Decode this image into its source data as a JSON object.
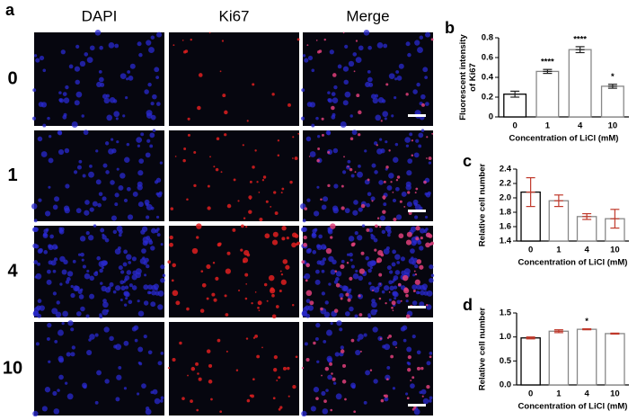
{
  "figure": {
    "panel_a": {
      "label": "a",
      "columns": [
        "DAPI",
        "Ki67",
        "Merge"
      ],
      "rows": [
        "0",
        "1",
        "4",
        "10"
      ]
    }
  },
  "chart_data": [
    {
      "type": "bar",
      "label": "b",
      "ylabel": [
        "Fluorescent intensity",
        "of Ki67"
      ],
      "xlabel": "Concentration of LiCl (mM)",
      "categories": [
        "0",
        "1",
        "4",
        "10"
      ],
      "values": [
        0.23,
        0.46,
        0.68,
        0.31
      ],
      "errors": [
        0.03,
        0.02,
        0.03,
        0.02
      ],
      "annotations": [
        null,
        "****",
        "****",
        "*"
      ],
      "edge_colors": [
        "#000000",
        "#888888",
        "#888888",
        "#888888"
      ],
      "error_color": "#222222",
      "ylim": [
        0,
        0.8
      ],
      "yticks": [
        0,
        0.2,
        0.4,
        0.6,
        0.8
      ]
    },
    {
      "type": "bar",
      "label": "c",
      "ylabel": [
        "Relative cell number"
      ],
      "xlabel": "Concentration of LiCl (mM)",
      "categories": [
        "0",
        "1",
        "4",
        "10"
      ],
      "values": [
        2.08,
        1.96,
        1.74,
        1.71
      ],
      "errors": [
        0.2,
        0.08,
        0.04,
        0.13
      ],
      "edge_colors": [
        "#000000",
        "#888888",
        "#888888",
        "#888888"
      ],
      "error_color": "#c0392b",
      "ylim": [
        1.4,
        2.4
      ],
      "yticks": [
        1.4,
        1.6,
        1.8,
        {
          "value": 2,
          "label": "2.0"
        },
        2.2,
        2.4
      ]
    },
    {
      "type": "bar",
      "label": "d",
      "ylabel": [
        "Relative cell number"
      ],
      "xlabel": "Concentration of LiCl (mM)",
      "categories": [
        "0",
        "1",
        "4",
        "10"
      ],
      "values": [
        0.98,
        1.12,
        1.16,
        1.07
      ],
      "errors": [
        0.02,
        0.03,
        0.01,
        0.01
      ],
      "annotations": [
        null,
        null,
        "*",
        null
      ],
      "edge_colors": [
        "#000000",
        "#888888",
        "#888888",
        "#888888"
      ],
      "error_color": "#c0392b",
      "ylim": [
        0,
        1.5
      ],
      "yticks": [
        {
          "value": 0,
          "label": "0.0"
        },
        0.5,
        {
          "value": 1,
          "label": "1.0"
        },
        1.5
      ]
    }
  ]
}
